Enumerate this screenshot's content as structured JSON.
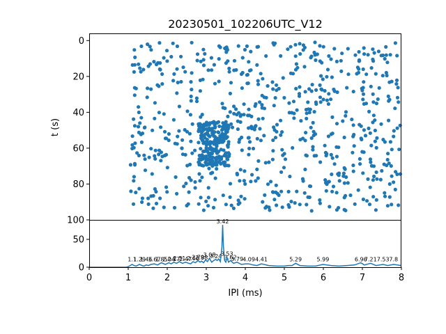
{
  "chart_data": [
    {
      "type": "scatter",
      "title": "20230501_102206UTC_V12",
      "xlabel": "",
      "ylabel": "t (s)",
      "xlim": [
        0,
        8
      ],
      "ylim": [
        100,
        -4
      ],
      "y_inverted": true,
      "yticks": [
        0,
        20,
        40,
        60,
        80,
        100
      ],
      "marker_color": "#1f77b4",
      "points_generated_from": {
        "x_range": [
          1.05,
          8.0
        ],
        "y_range": [
          1,
          95
        ],
        "dense_x_range": [
          2.8,
          3.6
        ],
        "dense_y_range": [
          45,
          70
        ],
        "count": 900
      }
    },
    {
      "type": "line",
      "xlabel": "IPI (ms)",
      "ylabel": "",
      "xlim": [
        0,
        8
      ],
      "ylim": [
        0,
        85
      ],
      "xticks": [
        0,
        1,
        2,
        3,
        4,
        5,
        6,
        7,
        8
      ],
      "yticks": [
        0,
        50
      ],
      "line_color": "#1f77b4",
      "peaks": [
        {
          "x": 1.1,
          "label": "1.1"
        },
        {
          "x": 1.29,
          "label": "1.29"
        },
        {
          "x": 1.46,
          "label": "1.46"
        },
        {
          "x": 1.67,
          "label": "1.67"
        },
        {
          "x": 1.85,
          "label": "1.85"
        },
        {
          "x": 2.04,
          "label": "2.04"
        },
        {
          "x": 2.17,
          "label": "2.17"
        },
        {
          "x": 2.31,
          "label": "2.31"
        },
        {
          "x": 2.47,
          "label": "2.47"
        },
        {
          "x": 2.66,
          "label": "2.66"
        },
        {
          "x": 2.79,
          "label": "2.79"
        },
        {
          "x": 2.88,
          "label": "2.88"
        },
        {
          "x": 3.08,
          "label": "3.08"
        },
        {
          "x": 3.24,
          "label": "3.24"
        },
        {
          "x": 3.42,
          "label": "3.42"
        },
        {
          "x": 3.53,
          "label": "3.53"
        },
        {
          "x": 3.62,
          "label": "3.62"
        },
        {
          "x": 3.79,
          "label": "3.79"
        },
        {
          "x": 4.09,
          "label": "4.09"
        },
        {
          "x": 4.41,
          "label": "4.41"
        },
        {
          "x": 5.29,
          "label": "5.29"
        },
        {
          "x": 5.99,
          "label": "5.99"
        },
        {
          "x": 6.96,
          "label": "6.96"
        },
        {
          "x": 7.21,
          "label": "7.21"
        },
        {
          "x": 7.53,
          "label": "7.53"
        },
        {
          "x": 7.8,
          "label": "7.8"
        }
      ],
      "series": [
        {
          "x": [
            0,
            0.5,
            0.95,
            1.0,
            1.05,
            1.1,
            1.15,
            1.2,
            1.29,
            1.35,
            1.4,
            1.46,
            1.52,
            1.58,
            1.67,
            1.75,
            1.85,
            1.95,
            2.04,
            2.1,
            2.17,
            2.24,
            2.31,
            2.39,
            2.47,
            2.55,
            2.6,
            2.66,
            2.72,
            2.79,
            2.84,
            2.88,
            2.93,
            2.98,
            3.03,
            3.08,
            3.14,
            3.19,
            3.24,
            3.28,
            3.32,
            3.36,
            3.4,
            3.42,
            3.44,
            3.47,
            3.5,
            3.53,
            3.57,
            3.62,
            3.7,
            3.79,
            3.9,
            4.0,
            4.09,
            4.2,
            4.3,
            4.41,
            4.6,
            4.8,
            5.0,
            5.1,
            5.2,
            5.29,
            5.4,
            5.6,
            5.8,
            5.99,
            6.2,
            6.4,
            6.6,
            6.8,
            6.96,
            7.05,
            7.21,
            7.35,
            7.53,
            7.65,
            7.8,
            8.0
          ],
          "y": [
            0,
            0,
            0,
            1,
            3,
            5,
            3,
            2,
            5,
            3,
            2,
            4,
            3,
            5,
            6,
            4,
            8,
            5,
            8,
            6,
            9,
            7,
            10,
            7,
            9,
            7,
            6,
            10,
            8,
            12,
            9,
            11,
            8,
            13,
            10,
            16,
            9,
            12,
            14,
            12,
            15,
            10,
            35,
            76,
            38,
            12,
            9,
            18,
            9,
            12,
            7,
            9,
            5,
            6,
            6,
            4,
            3,
            6,
            3,
            2,
            2,
            3,
            3,
            7,
            3,
            2,
            2,
            5,
            3,
            2,
            3,
            4,
            8,
            4,
            7,
            3,
            5,
            3,
            5,
            3
          ]
        }
      ]
    }
  ]
}
